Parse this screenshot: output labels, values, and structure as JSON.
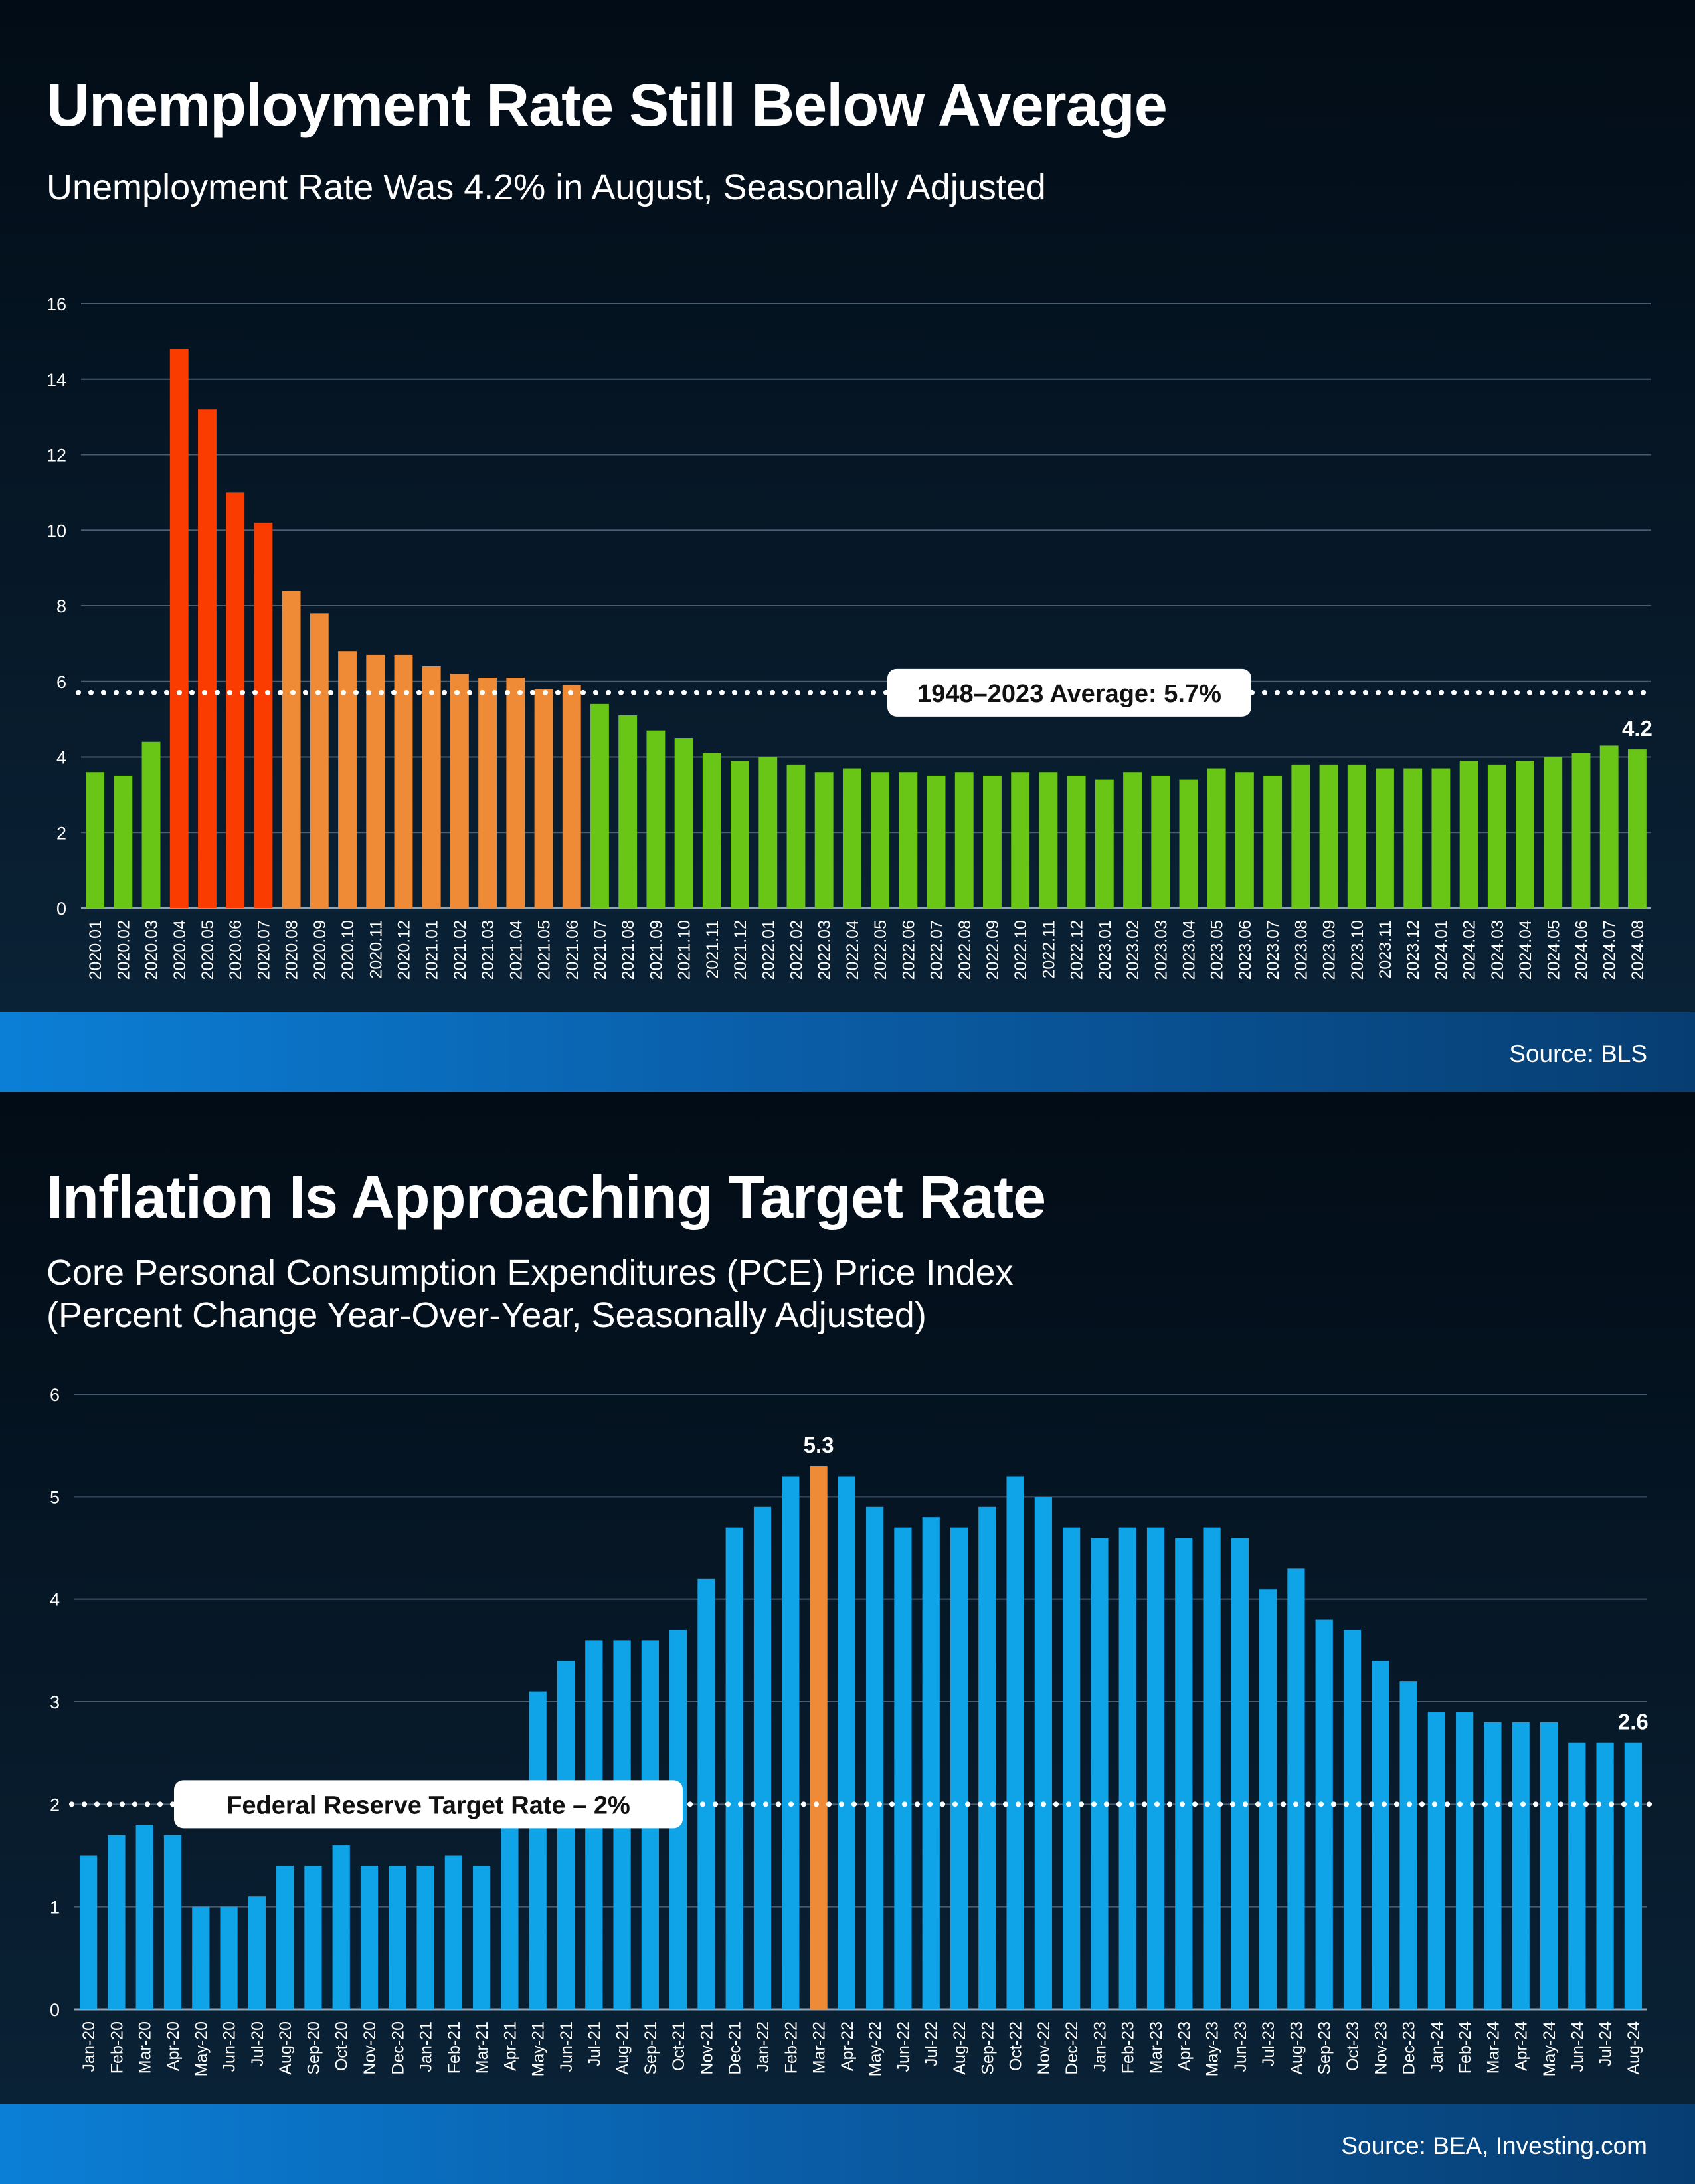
{
  "colors": {
    "background": "#06182a",
    "band": "#0a6cc0",
    "green": "#6ac616",
    "red": "#fb3c00",
    "orange": "#ef8a36",
    "blue": "#0fa3e8",
    "highlight": "#ef8a36"
  },
  "panel1": {
    "title": "Unemployment Rate Still Below Average",
    "subtitle": "Unemployment Rate Was 4.2% in August, Seasonally Adjusted",
    "source": "Source: BLS"
  },
  "panel2": {
    "title": "Inflation Is Approaching Target Rate",
    "subtitle_line1": "Core Personal Consumption Expenditures (PCE) Price Index",
    "subtitle_line2": "(Percent Change Year-Over-Year, Seasonally Adjusted)",
    "source": "Source: BEA, Investing.com"
  },
  "chart_data": [
    {
      "type": "bar",
      "title": "Unemployment Rate Still Below Average",
      "subtitle": "Unemployment Rate Was 4.2% in August, Seasonally Adjusted",
      "categories": [
        "2020.01",
        "2020.02",
        "2020.03",
        "2020.04",
        "2020.05",
        "2020.06",
        "2020.07",
        "2020.08",
        "2020.09",
        "2020.10",
        "2020.11",
        "2020.12",
        "2021.01",
        "2021.02",
        "2021.03",
        "2021.04",
        "2021.05",
        "2021.06",
        "2021.07",
        "2021.08",
        "2021.09",
        "2021.10",
        "2021.11",
        "2021.12",
        "2022.01",
        "2022.02",
        "2022.03",
        "2022.04",
        "2022.05",
        "2022.06",
        "2022.07",
        "2022.08",
        "2022.09",
        "2022.10",
        "2022.11",
        "2022.12",
        "2023.01",
        "2023.02",
        "2023.03",
        "2023.04",
        "2023.05",
        "2023.06",
        "2023.07",
        "2023.08",
        "2023.09",
        "2023.10",
        "2023.11",
        "2023.12",
        "2024.01",
        "2024.02",
        "2024.03",
        "2024.04",
        "2024.05",
        "2024.06",
        "2024.07",
        "2024.08"
      ],
      "values": [
        3.6,
        3.5,
        4.4,
        14.8,
        13.2,
        11.0,
        10.2,
        8.4,
        7.8,
        6.8,
        6.7,
        6.7,
        6.4,
        6.2,
        6.1,
        6.1,
        5.8,
        5.9,
        5.4,
        5.1,
        4.7,
        4.5,
        4.1,
        3.9,
        4.0,
        3.8,
        3.6,
        3.7,
        3.6,
        3.6,
        3.5,
        3.6,
        3.5,
        3.6,
        3.6,
        3.5,
        3.4,
        3.6,
        3.5,
        3.4,
        3.7,
        3.6,
        3.5,
        3.8,
        3.8,
        3.8,
        3.7,
        3.7,
        3.7,
        3.9,
        3.8,
        3.9,
        4.0,
        4.1,
        4.3,
        4.2
      ],
      "bar_colors": [
        "green",
        "green",
        "green",
        "red",
        "red",
        "red",
        "red",
        "orange",
        "orange",
        "orange",
        "orange",
        "orange",
        "orange",
        "orange",
        "orange",
        "orange",
        "orange",
        "orange",
        "green",
        "green",
        "green",
        "green",
        "green",
        "green",
        "green",
        "green",
        "green",
        "green",
        "green",
        "green",
        "green",
        "green",
        "green",
        "green",
        "green",
        "green",
        "green",
        "green",
        "green",
        "green",
        "green",
        "green",
        "green",
        "green",
        "green",
        "green",
        "green",
        "green",
        "green",
        "green",
        "green",
        "green",
        "green",
        "green",
        "green",
        "green"
      ],
      "ylim": [
        0,
        16
      ],
      "yticks": [
        "0",
        "2",
        "4",
        "6",
        "8",
        "10",
        "12",
        "14",
        "16"
      ],
      "grid": true,
      "reference_line": {
        "value": 5.7,
        "label": "1948–2023 Average: 5.7%"
      },
      "data_label": {
        "index": 55,
        "text": "4.2"
      }
    },
    {
      "type": "bar",
      "title": "Inflation Is Approaching Target Rate",
      "subtitle": "Core Personal Consumption Expenditures (PCE) Price Index (Percent Change Year-Over-Year, Seasonally Adjusted)",
      "categories": [
        "Jan-20",
        "Feb-20",
        "Mar-20",
        "Apr-20",
        "May-20",
        "Jun-20",
        "Jul-20",
        "Aug-20",
        "Sep-20",
        "Oct-20",
        "Nov-20",
        "Dec-20",
        "Jan-21",
        "Feb-21",
        "Mar-21",
        "Apr-21",
        "May-21",
        "Jun-21",
        "Jul-21",
        "Aug-21",
        "Sep-21",
        "Oct-21",
        "Nov-21",
        "Dec-21",
        "Jan-22",
        "Feb-22",
        "Mar-22",
        "Apr-22",
        "May-22",
        "Jun-22",
        "Jul-22",
        "Aug-22",
        "Sep-22",
        "Oct-22",
        "Nov-22",
        "Dec-22",
        "Jan-23",
        "Feb-23",
        "Mar-23",
        "Apr-23",
        "May-23",
        "Jun-23",
        "Jul-23",
        "Aug-23",
        "Sep-23",
        "Oct-23",
        "Nov-23",
        "Dec-23",
        "Jan-24",
        "Feb-24",
        "Mar-24",
        "Apr-24",
        "May-24",
        "Jun-24",
        "Jul-24",
        "Aug-24"
      ],
      "values": [
        1.5,
        1.7,
        1.8,
        1.7,
        1.0,
        1.0,
        1.1,
        1.4,
        1.4,
        1.6,
        1.4,
        1.4,
        1.4,
        1.5,
        1.4,
        1.9,
        3.1,
        3.4,
        3.6,
        3.6,
        3.6,
        3.7,
        4.2,
        4.7,
        4.9,
        5.2,
        5.3,
        5.2,
        4.9,
        4.7,
        4.8,
        4.7,
        4.9,
        5.2,
        5.0,
        4.7,
        4.6,
        4.7,
        4.7,
        4.6,
        4.7,
        4.6,
        4.1,
        4.3,
        3.8,
        3.7,
        3.4,
        3.2,
        2.9,
        2.9,
        2.8,
        2.8,
        2.8,
        2.6,
        2.6,
        2.6
      ],
      "highlight_index": 26,
      "ylim": [
        0,
        6
      ],
      "yticks": [
        "0",
        "1",
        "2",
        "3",
        "4",
        "5",
        "6"
      ],
      "grid": true,
      "reference_line": {
        "value": 2.0,
        "label": "Federal Reserve Target Rate – 2%"
      },
      "data_labels": [
        {
          "index": 26,
          "text": "5.3"
        },
        {
          "index": 55,
          "text": "2.6"
        }
      ]
    }
  ]
}
